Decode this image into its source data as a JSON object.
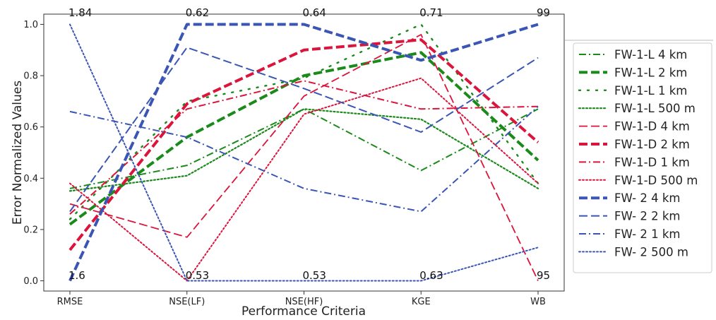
{
  "chart_data": {
    "type": "line",
    "xlabel": "Performance Criteria",
    "ylabel": "Error Normalized Values",
    "categories": [
      "RMSE",
      "NSE(LF)",
      "NSE(HF)",
      "KGE",
      "WB"
    ],
    "ylim": [
      -0.04,
      1.04
    ],
    "yticks": [
      "0.0",
      "0.2",
      "0.4",
      "0.6",
      "0.8",
      "1.0"
    ],
    "grid": false,
    "legend_position": "right, outside plot",
    "top_annotations": [
      "1.84",
      "0.62",
      "0.64",
      "0.71",
      "99"
    ],
    "bottom_annotations": [
      "1.6",
      "0.53",
      "0.53",
      "0.63",
      "95"
    ],
    "series": [
      {
        "name": "FW-1-L 4 km",
        "color": "#1a8a1a",
        "style": "dashdot",
        "width": 2,
        "values": [
          0.36,
          0.45,
          0.67,
          0.43,
          0.67
        ]
      },
      {
        "name": "FW-1-L 2 km",
        "color": "#1a8a1a",
        "style": "dashed",
        "width": 4,
        "values": [
          0.22,
          0.56,
          0.8,
          0.89,
          0.47
        ]
      },
      {
        "name": "FW-1-L 1 km",
        "color": "#1a8a1a",
        "style": "loose",
        "width": 2.4,
        "values": [
          0.24,
          0.7,
          0.79,
          1.0,
          0.38
        ]
      },
      {
        "name": "FW-1-L 500 m",
        "color": "#1a8a1a",
        "style": "dotted",
        "width": 2.2,
        "values": [
          0.35,
          0.41,
          0.67,
          0.63,
          0.36
        ]
      },
      {
        "name": "FW-1-D 4 km",
        "color": "#dc143c",
        "style": "dashed",
        "width": 1.8,
        "values": [
          0.3,
          0.17,
          0.72,
          0.96,
          0.0
        ]
      },
      {
        "name": "FW-1-D 2 km",
        "color": "#dc143c",
        "style": "dashed",
        "width": 4,
        "values": [
          0.12,
          0.69,
          0.9,
          0.94,
          0.54
        ]
      },
      {
        "name": "FW-1-D 1 km",
        "color": "#dc143c",
        "style": "dashdot",
        "width": 2,
        "values": [
          0.26,
          0.67,
          0.78,
          0.67,
          0.68
        ]
      },
      {
        "name": "FW-1-D 500 m",
        "color": "#dc143c",
        "style": "dotted",
        "width": 2,
        "values": [
          0.38,
          0.0,
          0.65,
          0.79,
          0.38
        ]
      },
      {
        "name": "FW- 2 4 km",
        "color": "#3a55b4",
        "style": "dashed",
        "width": 4,
        "values": [
          0.0,
          1.0,
          1.0,
          0.86,
          1.0
        ]
      },
      {
        "name": "FW- 2 2 km",
        "color": "#3a55b4",
        "style": "dashed",
        "width": 2,
        "values": [
          0.27,
          0.91,
          0.75,
          0.58,
          0.87
        ]
      },
      {
        "name": "FW- 2 1 km",
        "color": "#3a55b4",
        "style": "dashdot",
        "width": 2,
        "values": [
          0.66,
          0.56,
          0.36,
          0.27,
          0.68
        ]
      },
      {
        "name": "FW- 2 500 m",
        "color": "#3a55b4",
        "style": "dotted",
        "width": 2,
        "values": [
          1.0,
          0.0,
          0.0,
          0.0,
          0.13
        ]
      }
    ]
  }
}
